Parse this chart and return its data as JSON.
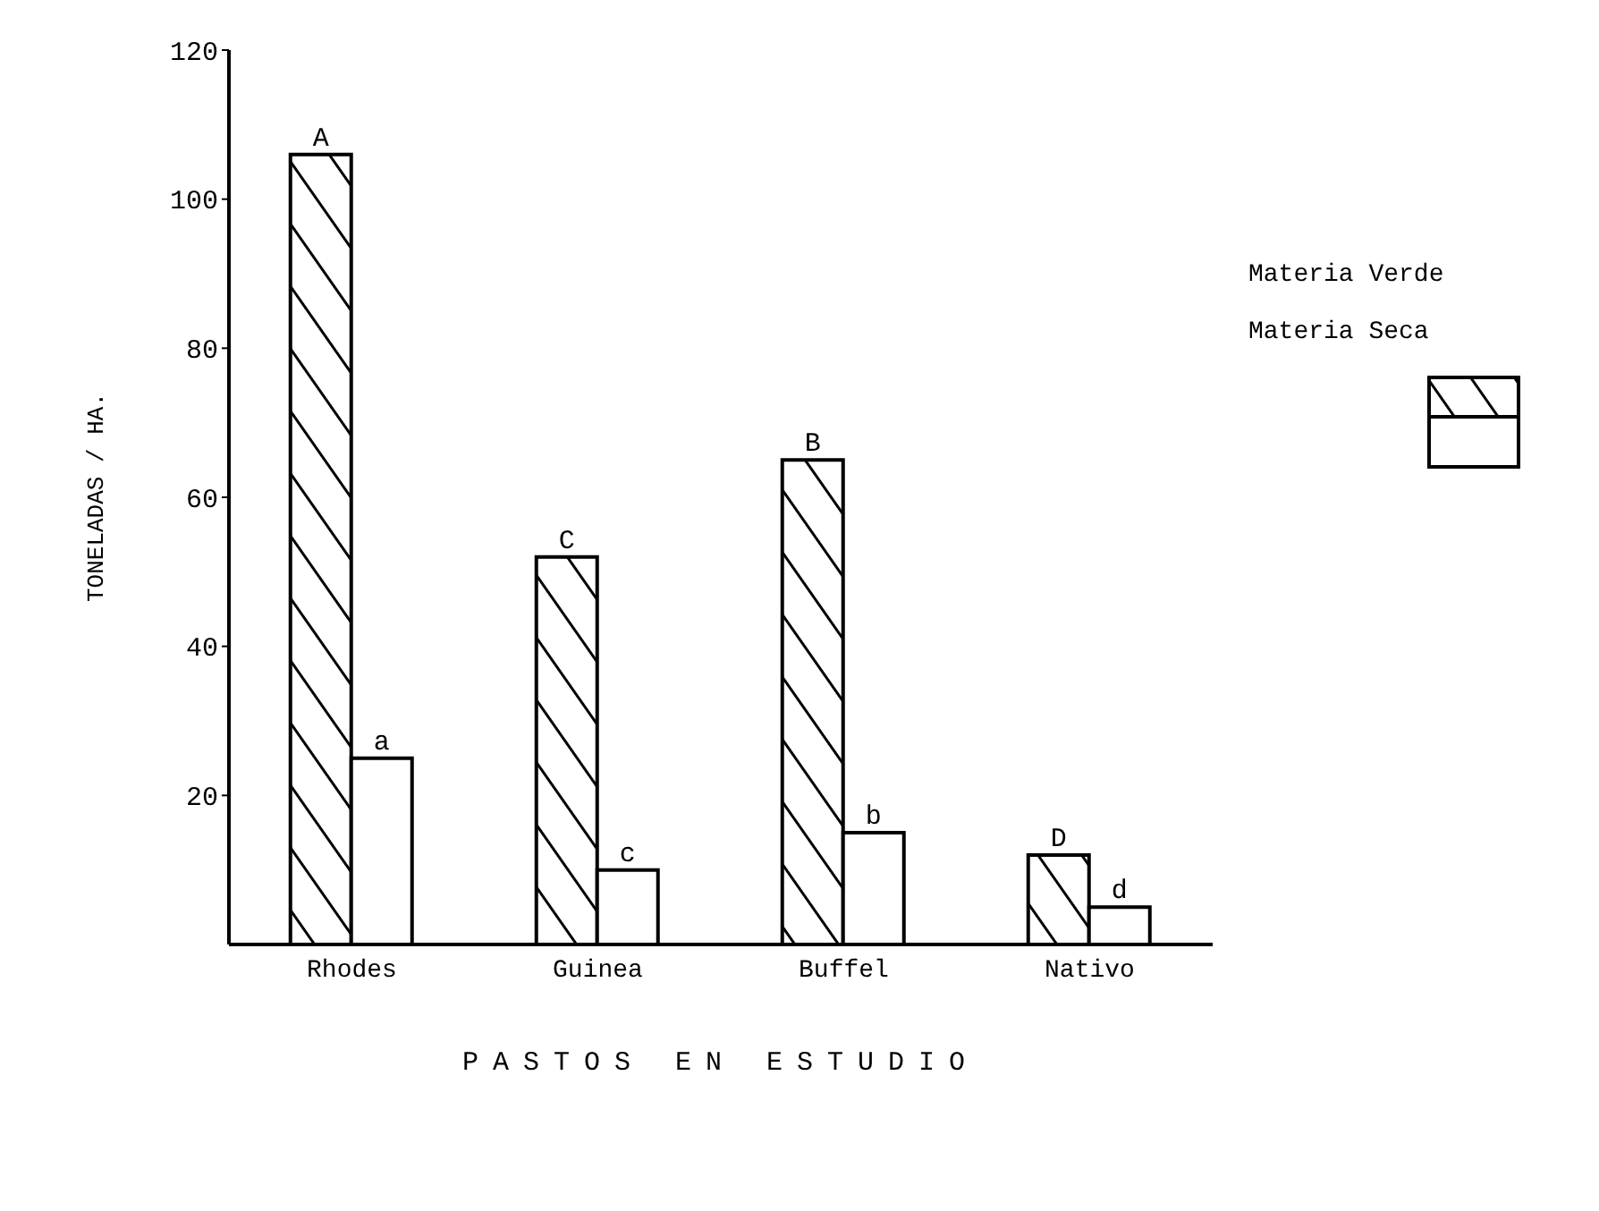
{
  "chart_data": {
    "type": "bar",
    "xlabel": "PASTOS EN ESTUDIO",
    "ylabel": "TONELADAS / HA.",
    "categories": [
      "Rhodes",
      "Guinea",
      "Buffel",
      "Nativo"
    ],
    "series": [
      {
        "name": "Materia Verde",
        "color": "#000000",
        "values": [
          106,
          52,
          65,
          12
        ],
        "value_labels": [
          "A",
          "C",
          "B",
          "D"
        ]
      },
      {
        "name": "Materia Seca",
        "color": "#000000",
        "values": [
          25,
          10,
          15,
          5
        ],
        "value_labels": [
          "a",
          "c",
          "b",
          "d"
        ]
      }
    ],
    "ylim": [
      0,
      120
    ],
    "yticks": [
      20,
      40,
      60,
      80,
      100,
      120
    ],
    "grid": false,
    "legend": "right"
  }
}
